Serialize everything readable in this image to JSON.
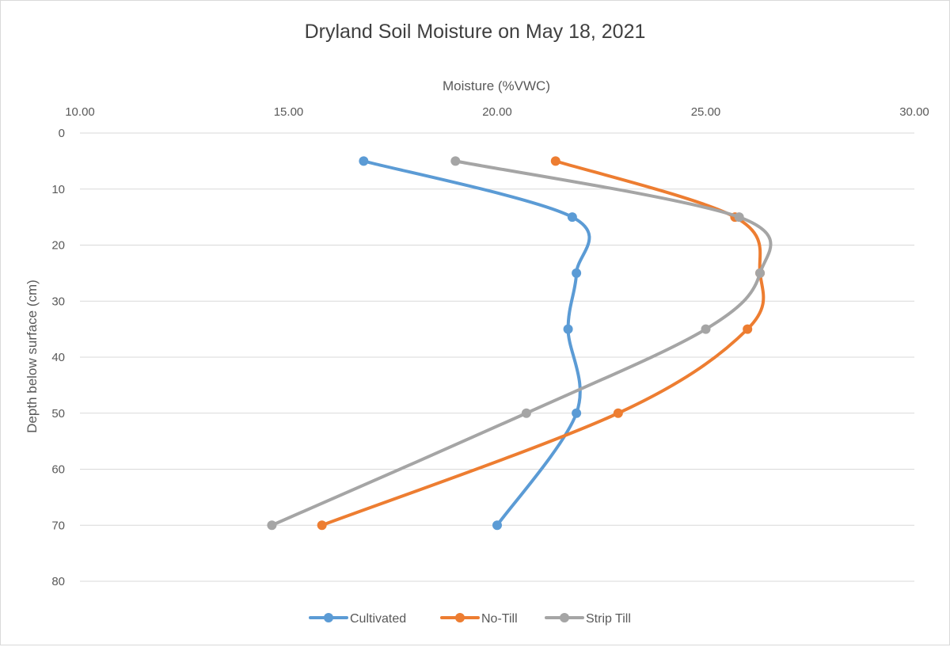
{
  "chart_data": {
    "type": "line",
    "title": "Dryland Soil Moisture on May 18, 2021",
    "xlabel": "Moisture (%VWC)",
    "ylabel": "Depth below surface (cm)",
    "x_axis_position": "top",
    "y_axis_reversed": true,
    "xlim": [
      10,
      30
    ],
    "ylim": [
      0,
      80
    ],
    "x_ticks": [
      "10.00",
      "15.00",
      "20.00",
      "25.00",
      "30.00"
    ],
    "y_ticks": [
      "0",
      "10",
      "20",
      "30",
      "40",
      "50",
      "60",
      "70",
      "80"
    ],
    "grid": true,
    "smoothed": true,
    "legend_position": "bottom",
    "series": [
      {
        "name": "Cultivated",
        "color": "#5b9bd5",
        "points": [
          [
            16.8,
            5
          ],
          [
            21.8,
            15
          ],
          [
            21.9,
            25
          ],
          [
            21.7,
            35
          ],
          [
            21.9,
            50
          ],
          [
            20.0,
            70
          ]
        ]
      },
      {
        "name": "No-Till",
        "color": "#ed7d31",
        "points": [
          [
            21.4,
            5
          ],
          [
            25.7,
            15
          ],
          [
            26.3,
            25
          ],
          [
            26.0,
            35
          ],
          [
            22.9,
            50
          ],
          [
            15.8,
            70
          ]
        ]
      },
      {
        "name": "Strip Till",
        "color": "#a5a5a5",
        "points": [
          [
            19.0,
            5
          ],
          [
            25.8,
            15
          ],
          [
            26.3,
            25
          ],
          [
            25.0,
            35
          ],
          [
            20.7,
            50
          ],
          [
            14.6,
            70
          ]
        ]
      }
    ]
  }
}
